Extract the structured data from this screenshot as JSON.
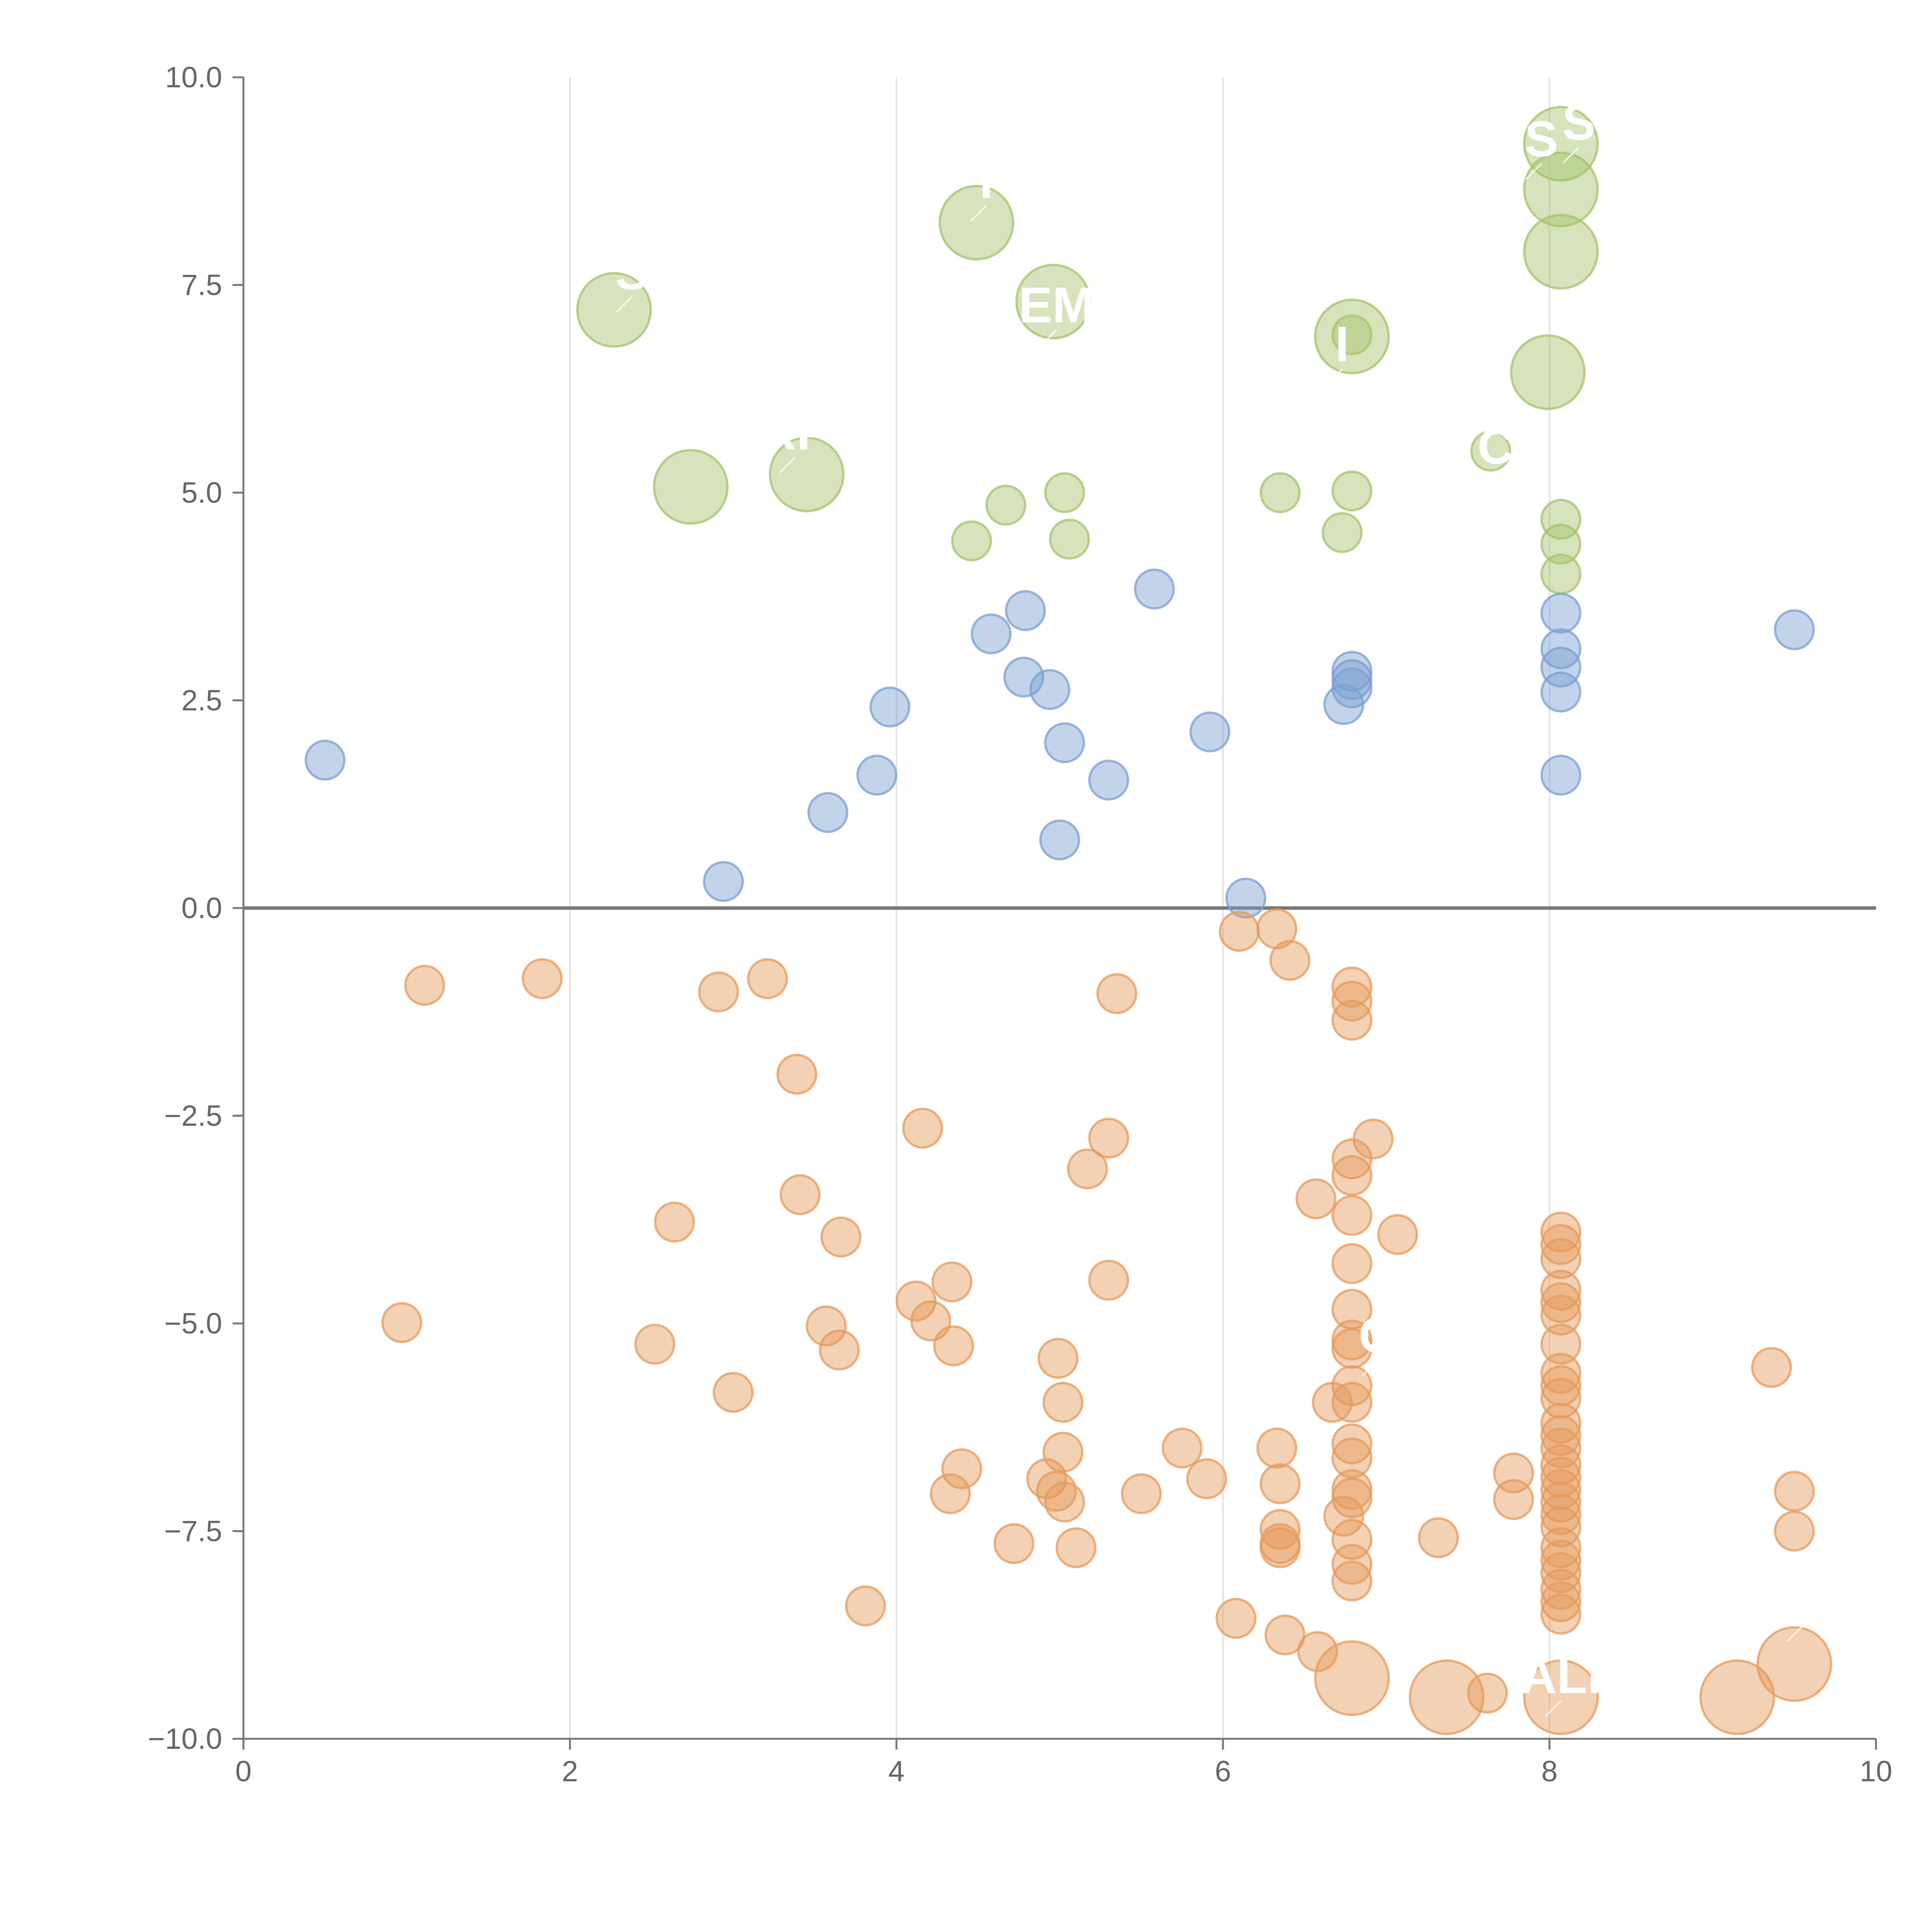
{
  "chart_data": {
    "type": "scatter",
    "title": "",
    "xlabel": "",
    "ylabel": "",
    "xlim": [
      0,
      10
    ],
    "ylim": [
      -10,
      10
    ],
    "x_ticks": [
      "0",
      "2",
      "4",
      "6",
      "8",
      "10"
    ],
    "y_ticks": [
      "−10.0",
      "−7.5",
      "−5.0",
      "−2.5",
      "0.0",
      "2.5",
      "5.0",
      "7.5",
      "10.0"
    ],
    "grid": "vertical",
    "legend": "none",
    "colors": {
      "green": "#a4c26b",
      "blue": "#7b9fd1",
      "orange": "#e59a5c"
    },
    "series": [
      {
        "color": "green",
        "points": [
          {
            "x": 8.07,
            "y": 9.2,
            "s": "large"
          },
          {
            "x": 8.07,
            "y": 8.65,
            "s": "large"
          },
          {
            "x": 8.07,
            "y": 7.9,
            "s": "large"
          },
          {
            "x": 4.49,
            "y": 8.25,
            "s": "large"
          },
          {
            "x": 2.27,
            "y": 7.2,
            "s": "large"
          },
          {
            "x": 4.96,
            "y": 7.3,
            "s": "large"
          },
          {
            "x": 6.79,
            "y": 6.88,
            "s": "large"
          },
          {
            "x": 7.99,
            "y": 6.45,
            "s": "large"
          },
          {
            "x": 2.74,
            "y": 5.07,
            "s": "large"
          },
          {
            "x": 3.45,
            "y": 5.22,
            "s": "large"
          },
          {
            "x": 6.79,
            "y": 6.9,
            "s": "small"
          },
          {
            "x": 7.64,
            "y": 5.5,
            "s": "small"
          },
          {
            "x": 6.35,
            "y": 5.0,
            "s": "small"
          },
          {
            "x": 6.79,
            "y": 5.02,
            "s": "small"
          },
          {
            "x": 5.03,
            "y": 5.0,
            "s": "small"
          },
          {
            "x": 4.67,
            "y": 4.85,
            "s": "small"
          },
          {
            "x": 4.46,
            "y": 4.42,
            "s": "small"
          },
          {
            "x": 5.06,
            "y": 4.44,
            "s": "small"
          },
          {
            "x": 6.73,
            "y": 4.52,
            "s": "small"
          },
          {
            "x": 8.07,
            "y": 4.68,
            "s": "small"
          },
          {
            "x": 8.07,
            "y": 4.38,
            "s": "small"
          },
          {
            "x": 8.07,
            "y": 4.02,
            "s": "small"
          }
        ]
      },
      {
        "color": "blue",
        "points": [
          {
            "x": 0.5,
            "y": 1.78
          },
          {
            "x": 2.94,
            "y": 0.32
          },
          {
            "x": 3.58,
            "y": 1.15
          },
          {
            "x": 3.88,
            "y": 1.6
          },
          {
            "x": 3.96,
            "y": 2.42
          },
          {
            "x": 4.58,
            "y": 3.3
          },
          {
            "x": 4.79,
            "y": 3.58
          },
          {
            "x": 4.78,
            "y": 2.78
          },
          {
            "x": 4.94,
            "y": 2.63
          },
          {
            "x": 5.03,
            "y": 1.99
          },
          {
            "x": 5.0,
            "y": 0.82
          },
          {
            "x": 5.3,
            "y": 1.54
          },
          {
            "x": 5.58,
            "y": 3.84
          },
          {
            "x": 5.92,
            "y": 2.12
          },
          {
            "x": 6.14,
            "y": 0.12
          },
          {
            "x": 6.79,
            "y": 2.85
          },
          {
            "x": 6.79,
            "y": 2.75
          },
          {
            "x": 6.79,
            "y": 2.65
          },
          {
            "x": 6.74,
            "y": 2.45
          },
          {
            "x": 8.07,
            "y": 3.55
          },
          {
            "x": 8.07,
            "y": 3.12
          },
          {
            "x": 8.07,
            "y": 2.9
          },
          {
            "x": 8.07,
            "y": 2.6
          },
          {
            "x": 8.07,
            "y": 1.6
          },
          {
            "x": 9.5,
            "y": 3.35
          }
        ]
      },
      {
        "color": "orange",
        "points": [
          {
            "x": 1.11,
            "y": -0.93
          },
          {
            "x": 1.83,
            "y": -0.85
          },
          {
            "x": 2.91,
            "y": -1.01
          },
          {
            "x": 3.21,
            "y": -0.85
          },
          {
            "x": 3.39,
            "y": -2.0
          },
          {
            "x": 5.35,
            "y": -1.03
          },
          {
            "x": 6.1,
            "y": -0.28
          },
          {
            "x": 6.33,
            "y": -0.25
          },
          {
            "x": 6.41,
            "y": -0.63
          },
          {
            "x": 6.79,
            "y": -0.95
          },
          {
            "x": 6.79,
            "y": -1.12
          },
          {
            "x": 6.79,
            "y": -1.35
          },
          {
            "x": 4.16,
            "y": -2.65
          },
          {
            "x": 5.3,
            "y": -2.77
          },
          {
            "x": 5.17,
            "y": -3.14
          },
          {
            "x": 6.92,
            "y": -2.78
          },
          {
            "x": 6.79,
            "y": -3.02
          },
          {
            "x": 6.79,
            "y": -3.22
          },
          {
            "x": 6.57,
            "y": -3.5
          },
          {
            "x": 6.79,
            "y": -3.7
          },
          {
            "x": 7.07,
            "y": -3.93
          },
          {
            "x": 6.79,
            "y": -4.28
          },
          {
            "x": 6.79,
            "y": -4.83
          },
          {
            "x": 6.79,
            "y": -5.3
          },
          {
            "x": 6.79,
            "y": -5.2
          },
          {
            "x": 6.79,
            "y": -5.75
          },
          {
            "x": 6.79,
            "y": -5.95
          },
          {
            "x": 6.67,
            "y": -5.95
          },
          {
            "x": 6.79,
            "y": -6.45
          },
          {
            "x": 6.79,
            "y": -6.62
          },
          {
            "x": 6.79,
            "y": -7.0
          },
          {
            "x": 6.79,
            "y": -7.1
          },
          {
            "x": 6.74,
            "y": -7.32
          },
          {
            "x": 6.79,
            "y": -7.6
          },
          {
            "x": 6.79,
            "y": -7.9
          },
          {
            "x": 6.79,
            "y": -8.1
          },
          {
            "x": 2.64,
            "y": -3.78
          },
          {
            "x": 3.41,
            "y": -3.45
          },
          {
            "x": 3.66,
            "y": -3.96
          },
          {
            "x": 0.97,
            "y": -4.99
          },
          {
            "x": 2.52,
            "y": -5.25
          },
          {
            "x": 3.57,
            "y": -5.03
          },
          {
            "x": 3.65,
            "y": -5.32
          },
          {
            "x": 3.0,
            "y": -5.83
          },
          {
            "x": 4.12,
            "y": -4.73
          },
          {
            "x": 4.21,
            "y": -4.97
          },
          {
            "x": 4.34,
            "y": -4.5
          },
          {
            "x": 4.35,
            "y": -5.27
          },
          {
            "x": 5.3,
            "y": -4.48
          },
          {
            "x": 4.99,
            "y": -5.42
          },
          {
            "x": 5.02,
            "y": -5.95
          },
          {
            "x": 5.02,
            "y": -6.55
          },
          {
            "x": 4.4,
            "y": -6.75
          },
          {
            "x": 4.33,
            "y": -7.05
          },
          {
            "x": 4.92,
            "y": -6.87
          },
          {
            "x": 4.98,
            "y": -7.02
          },
          {
            "x": 5.03,
            "y": -7.15
          },
          {
            "x": 4.72,
            "y": -7.65
          },
          {
            "x": 5.1,
            "y": -7.7
          },
          {
            "x": 5.5,
            "y": -7.05
          },
          {
            "x": 5.75,
            "y": -6.5
          },
          {
            "x": 5.9,
            "y": -6.87
          },
          {
            "x": 6.33,
            "y": -6.5
          },
          {
            "x": 6.35,
            "y": -6.93
          },
          {
            "x": 6.35,
            "y": -7.48
          },
          {
            "x": 6.35,
            "y": -7.65
          },
          {
            "x": 6.35,
            "y": -7.7
          },
          {
            "x": 3.81,
            "y": -8.4
          },
          {
            "x": 6.08,
            "y": -8.55
          },
          {
            "x": 6.38,
            "y": -8.75
          },
          {
            "x": 6.58,
            "y": -8.95
          },
          {
            "x": 7.32,
            "y": -7.58
          },
          {
            "x": 7.62,
            "y": -9.45
          },
          {
            "x": 7.78,
            "y": -6.8
          },
          {
            "x": 7.78,
            "y": -7.12
          },
          {
            "x": 8.07,
            "y": -3.9
          },
          {
            "x": 8.07,
            "y": -4.05
          },
          {
            "x": 8.07,
            "y": -4.22
          },
          {
            "x": 8.07,
            "y": -4.6
          },
          {
            "x": 8.07,
            "y": -4.75
          },
          {
            "x": 8.07,
            "y": -4.9
          },
          {
            "x": 8.07,
            "y": -5.25
          },
          {
            "x": 8.07,
            "y": -5.6
          },
          {
            "x": 8.07,
            "y": -5.75
          },
          {
            "x": 8.07,
            "y": -5.9
          },
          {
            "x": 8.07,
            "y": -6.2
          },
          {
            "x": 8.07,
            "y": -6.35
          },
          {
            "x": 8.07,
            "y": -6.5
          },
          {
            "x": 8.07,
            "y": -6.7
          },
          {
            "x": 8.07,
            "y": -6.85
          },
          {
            "x": 8.07,
            "y": -7.0
          },
          {
            "x": 8.07,
            "y": -7.15
          },
          {
            "x": 8.07,
            "y": -7.3
          },
          {
            "x": 8.07,
            "y": -7.45
          },
          {
            "x": 8.07,
            "y": -7.7
          },
          {
            "x": 8.07,
            "y": -7.85
          },
          {
            "x": 8.07,
            "y": -8.0
          },
          {
            "x": 8.07,
            "y": -8.2
          },
          {
            "x": 8.07,
            "y": -8.35
          },
          {
            "x": 8.07,
            "y": -8.5
          },
          {
            "x": 9.36,
            "y": -5.53
          },
          {
            "x": 9.5,
            "y": -7.02
          },
          {
            "x": 9.5,
            "y": -7.5
          },
          {
            "x": 6.79,
            "y": -9.27,
            "s": "large"
          },
          {
            "x": 7.37,
            "y": -9.5,
            "s": "large"
          },
          {
            "x": 8.07,
            "y": -9.5,
            "s": "large"
          },
          {
            "x": 9.15,
            "y": -9.5,
            "s": "large"
          },
          {
            "x": 9.5,
            "y": -9.1,
            "s": "large"
          }
        ]
      }
    ],
    "annotations": [
      {
        "text": "S",
        "x": 8.18,
        "y": 9.25
      },
      {
        "text": "S",
        "x": 7.95,
        "y": 9.05
      },
      {
        "text": "T",
        "x": 4.55,
        "y": 8.55
      },
      {
        "text": "S",
        "x": 2.38,
        "y": 7.45
      },
      {
        "text": "EM",
        "x": 4.98,
        "y": 7.05
      },
      {
        "text": "I",
        "x": 6.73,
        "y": 6.58
      },
      {
        "text": "RP",
        "x": 3.38,
        "y": 5.52
      },
      {
        "text": "C",
        "x": 7.67,
        "y": 5.35
      },
      {
        "text": "O",
        "x": 6.95,
        "y": -5.35
      },
      {
        "text": "ALI",
        "x": 8.07,
        "y": -9.45
      },
      {
        "text": "O",
        "x": 9.55,
        "y": -8.55
      }
    ]
  }
}
